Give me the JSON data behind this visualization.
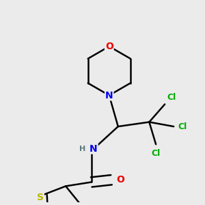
{
  "background_color": "#ebebeb",
  "atom_colors": {
    "C": "#000000",
    "H": "#5a7a7a",
    "N": "#0000ee",
    "O": "#ee0000",
    "S": "#b8b800",
    "Cl": "#00aa00"
  },
  "bond_color": "#000000",
  "bond_width": 1.8,
  "fig_width": 3.0,
  "fig_height": 3.0,
  "dpi": 100
}
